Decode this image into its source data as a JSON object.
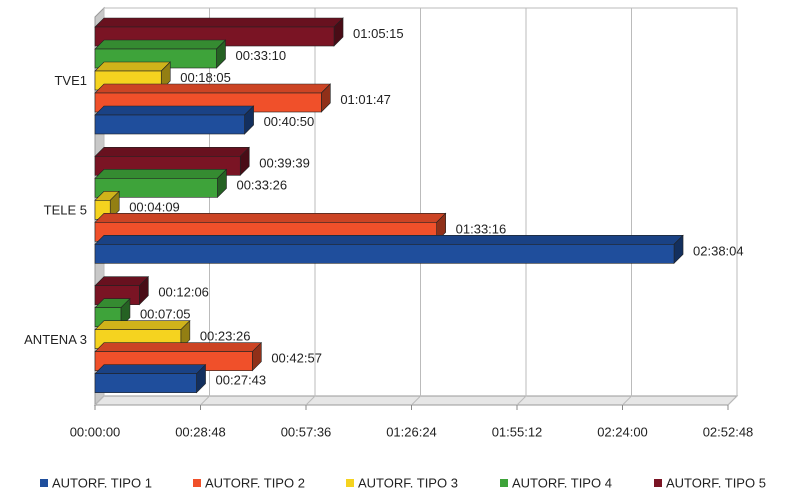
{
  "chart_data": {
    "type": "bar3d_horizontal",
    "categories": [
      "TVE1",
      "TELE 5",
      "ANTENA 3"
    ],
    "series": [
      {
        "name": "AUTORF. TIPO 1",
        "color": "#1f4e9c",
        "values": [
          2450,
          9484,
          1663
        ],
        "value_labels": [
          "00:40:50",
          "02:38:04",
          "00:27:43"
        ]
      },
      {
        "name": "AUTORF. TIPO 2",
        "color": "#f0502a",
        "values": [
          3707,
          5596,
          2577
        ],
        "value_labels": [
          "01:01:47",
          "01:33:16",
          "00:42:57"
        ]
      },
      {
        "name": "AUTORF. TIPO 3",
        "color": "#f5d31f",
        "values": [
          1085,
          249,
          1406
        ],
        "value_labels": [
          "00:18:05",
          "00:04:09",
          "00:23:26"
        ]
      },
      {
        "name": "AUTORF. TIPO 4",
        "color": "#3ea33a",
        "values": [
          1990,
          2006,
          425
        ],
        "value_labels": [
          "00:33:10",
          "00:33:26",
          "00:07:05"
        ]
      },
      {
        "name": "AUTORF. TIPO 5",
        "color": "#7a1424",
        "values": [
          3915,
          2379,
          726
        ],
        "value_labels": [
          "01:05:15",
          "00:39:39",
          "00:12:06"
        ]
      }
    ],
    "xlim": [
      0,
      10368
    ],
    "xticks": [
      {
        "value": 0,
        "label": "00:00:00"
      },
      {
        "value": 1728,
        "label": "00:28:48"
      },
      {
        "value": 3456,
        "label": "00:57:36"
      },
      {
        "value": 5184,
        "label": "01:26:24"
      },
      {
        "value": 6912,
        "label": "01:55:12"
      },
      {
        "value": 8640,
        "label": "02:24:00"
      },
      {
        "value": 10368,
        "label": "02:52:48"
      }
    ],
    "grid": true,
    "legend": "bottom"
  }
}
